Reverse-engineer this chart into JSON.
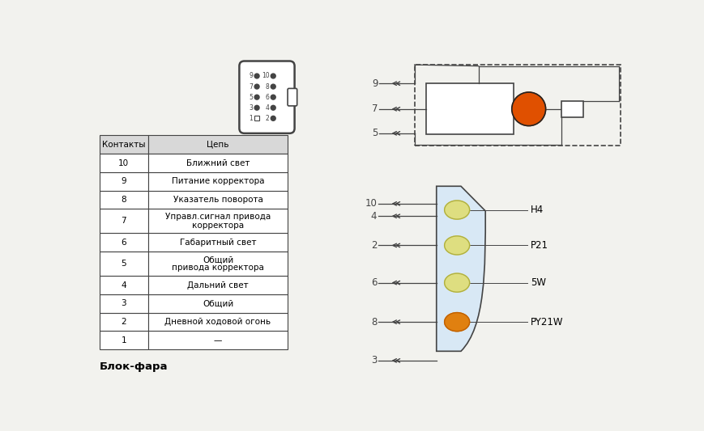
{
  "bg_color": "#f2f2ee",
  "title_label": "Блок-фара",
  "table_headers": [
    "Контакты",
    "Цепь"
  ],
  "table_rows": [
    [
      "1",
      "—"
    ],
    [
      "2",
      "Дневной ходовой огонь"
    ],
    [
      "3",
      "Общий"
    ],
    [
      "4",
      "Дальний свет"
    ],
    [
      "5",
      "Общий\nпривода корректора"
    ],
    [
      "6",
      "Габаритный свет"
    ],
    [
      "7",
      "Управл.сигнал привода\nкорректора"
    ],
    [
      "8",
      "Указатель поворота"
    ],
    [
      "9",
      "Питание корректора"
    ],
    [
      "10",
      "Ближний свет"
    ]
  ],
  "lamp_labels": [
    "H4",
    "P21",
    "5W",
    "PY21W"
  ],
  "lamp_colors": [
    "#dede80",
    "#dede80",
    "#dede80",
    "#e08010"
  ],
  "lamp_border_colors": [
    "#b0b040",
    "#b0b040",
    "#b0b040",
    "#c06000"
  ],
  "orange_color": "#e05000",
  "line_color": "#444444",
  "table_bg": "#ffffff",
  "table_header_bg": "#d8d8d8"
}
